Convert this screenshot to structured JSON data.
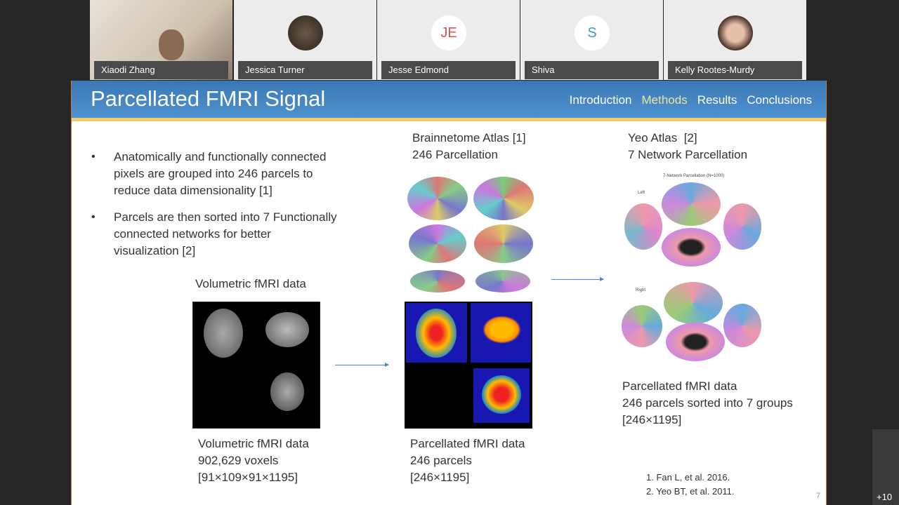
{
  "participants": [
    {
      "name": "Xiaodi Zhang",
      "type": "video"
    },
    {
      "name": "Jessica Turner",
      "type": "photo"
    },
    {
      "name": "Jesse Edmond",
      "initials": "JE",
      "color": "#d9534f"
    },
    {
      "name": "Shiva",
      "initials": "S",
      "color": "#3a9ad9"
    },
    {
      "name": "Kelly Rootes-Murdy",
      "type": "photo"
    }
  ],
  "more_participants": "+10",
  "slide": {
    "title": "Parcellated FMRI Signal",
    "nav": [
      "Introduction",
      "Methods",
      "Results",
      "Conclusions"
    ],
    "nav_active": "Methods",
    "bullets": [
      "Anatomically and functionally connected\npixels are grouped into 246 parcels to\nreduce data dimensionality [1]",
      "Parcels are then sorted into 7 Functionally\nconnected networks for better\nvisualization [2]"
    ],
    "vol_heading": "Volumetric fMRI data",
    "vol_caption": "Volumetric fMRI data\n902,629 voxels\n[91×109×91×1195]",
    "brainnetome_heading": "Brainnetome Atlas [1]\n246 Parcellation",
    "parc_caption": "Parcellated fMRI data\n246 parcels\n[246×1195]",
    "yeo_heading": "Yeo Atlas  [2]\n7 Network Parcellation",
    "yeo_figure_title": "7-Network Parcellation (N=1000)",
    "yeo_left": "Left",
    "yeo_right": "Right",
    "yeo_caption": "Parcellated fMRI data\n246 parcels sorted into 7 groups\n[246×1195]",
    "references": [
      "1. Fan L, et al. 2016.",
      "2. Yeo BT, et al. 2011."
    ],
    "page_number": "7"
  },
  "colors": {
    "header": "#3f80bf",
    "accent_line": "#f2cf6a",
    "nav_active": "#f0e2a0"
  }
}
